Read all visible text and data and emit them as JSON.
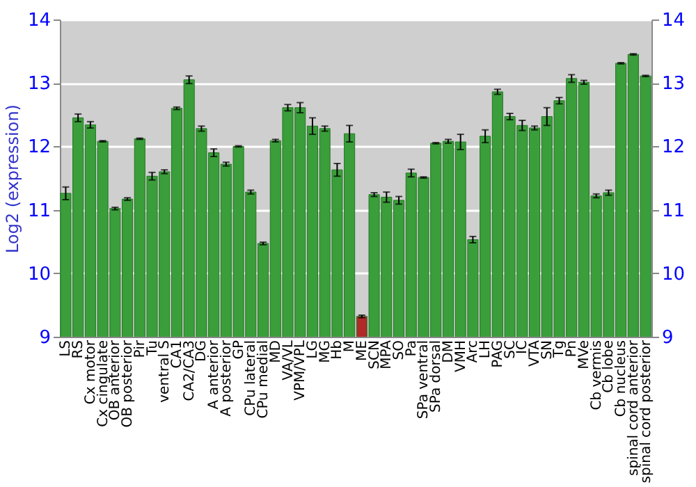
{
  "chart_data": {
    "type": "bar",
    "ylabel": "Log2 (expression)",
    "categories": [
      "LS",
      "RS",
      "Cx motor",
      "Cx cingulate",
      "OB anterior",
      "OB posterior",
      "Pir",
      "Tu",
      "ventral S",
      "CA1",
      "CA2/CA3",
      "DG",
      "A anterior",
      "A posterior",
      "GP",
      "CPu lateral",
      "CPu medial",
      "MD",
      "VA/VL",
      "VPM/VPL",
      "LG",
      "MG",
      "Hb",
      "M",
      "ME",
      "SCN",
      "MPA",
      "SO",
      "Pa",
      "SPa ventral",
      "SPa dorsal",
      "DM",
      "VMH",
      "Arc",
      "LH",
      "PAG",
      "SC",
      "IC",
      "VTA",
      "SN",
      "Tg",
      "Pn",
      "MVe",
      "Cb vermis",
      "Cb lobe",
      "Cb nucleus",
      "spinal cord anterior",
      "spinal cord posterior"
    ],
    "values": [
      11.26,
      12.45,
      12.34,
      12.08,
      11.02,
      11.17,
      12.12,
      11.53,
      11.6,
      12.6,
      13.05,
      12.28,
      11.9,
      11.72,
      12.0,
      11.28,
      10.47,
      12.09,
      12.61,
      12.61,
      12.32,
      12.28,
      11.63,
      12.2,
      9.32,
      11.24,
      11.2,
      11.15,
      11.58,
      11.51,
      12.05,
      12.08,
      12.07,
      10.53,
      12.16,
      12.86,
      12.47,
      12.33,
      12.29,
      12.47,
      12.72,
      13.07,
      13.01,
      11.22,
      11.27,
      13.31,
      13.45,
      13.11
    ],
    "errors": [
      0.1,
      0.06,
      0.05,
      0.01,
      0.02,
      0.02,
      0.01,
      0.06,
      0.03,
      0.02,
      0.06,
      0.04,
      0.06,
      0.03,
      0.01,
      0.03,
      0.02,
      0.02,
      0.05,
      0.08,
      0.13,
      0.04,
      0.1,
      0.13,
      0.02,
      0.03,
      0.08,
      0.06,
      0.06,
      0.01,
      0.01,
      0.03,
      0.12,
      0.05,
      0.1,
      0.04,
      0.05,
      0.08,
      0.03,
      0.14,
      0.05,
      0.06,
      0.03,
      0.03,
      0.04,
      0.01,
      0.01,
      0.01
    ],
    "colors": [
      "#3a9e3a",
      "#3a9e3a",
      "#3a9e3a",
      "#3a9e3a",
      "#3a9e3a",
      "#3a9e3a",
      "#3a9e3a",
      "#3a9e3a",
      "#3a9e3a",
      "#3a9e3a",
      "#3a9e3a",
      "#3a9e3a",
      "#3a9e3a",
      "#3a9e3a",
      "#3a9e3a",
      "#3a9e3a",
      "#3a9e3a",
      "#3a9e3a",
      "#3a9e3a",
      "#3a9e3a",
      "#3a9e3a",
      "#3a9e3a",
      "#3a9e3a",
      "#3a9e3a",
      "#b02a2a",
      "#3a9e3a",
      "#3a9e3a",
      "#3a9e3a",
      "#3a9e3a",
      "#3a9e3a",
      "#3a9e3a",
      "#3a9e3a",
      "#3a9e3a",
      "#3a9e3a",
      "#3a9e3a",
      "#3a9e3a",
      "#3a9e3a",
      "#3a9e3a",
      "#3a9e3a",
      "#3a9e3a",
      "#3a9e3a",
      "#3a9e3a",
      "#3a9e3a",
      "#3a9e3a",
      "#3a9e3a",
      "#3a9e3a",
      "#3a9e3a",
      "#3a9e3a"
    ],
    "ylim": [
      9,
      14
    ],
    "yticks": [
      9,
      10,
      11,
      12,
      13,
      14
    ],
    "y2lim": [
      9,
      14
    ],
    "y2ticks": [
      9,
      10,
      11,
      12,
      13,
      14
    ],
    "grid": "y"
  }
}
